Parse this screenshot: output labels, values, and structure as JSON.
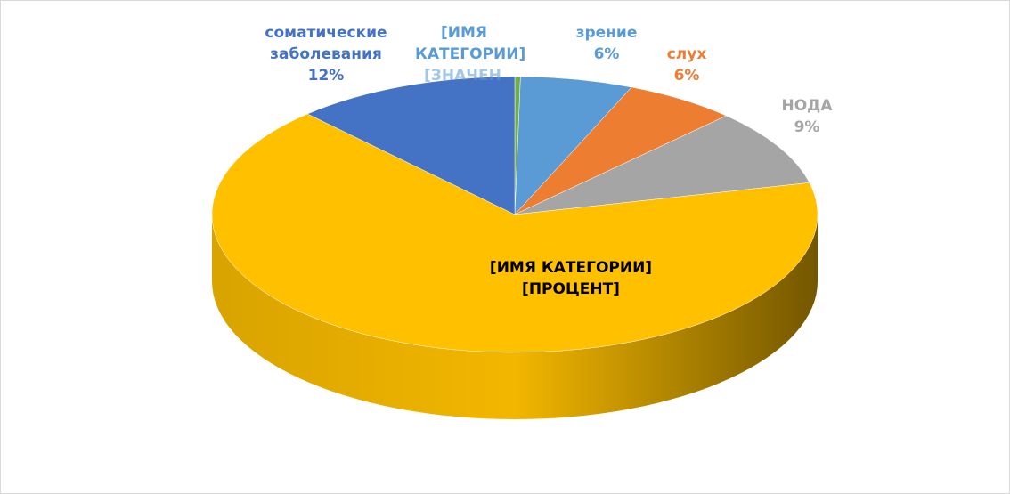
{
  "chart_data": {
    "type": "pie",
    "categories": [
      "[ИМЯ КАТЕГОРИИ]",
      "зрение",
      "слух",
      "НОДА",
      "[ИМЯ КАТЕГОРИИ]",
      "соматические заболевания"
    ],
    "values": [
      0.3,
      6,
      6,
      9,
      66.7,
      12
    ],
    "value_labels": [
      "[ЗНАЧЕН",
      "6%",
      "6%",
      "9%",
      "[ПРОЦЕНТ]",
      "12%"
    ],
    "colors": [
      "#70ad47",
      "#5b9bd5",
      "#ed7d31",
      "#a5a5a5",
      "#ffc000",
      "#4472c4"
    ],
    "label_colors": [
      "#5b9bd5",
      "#5b9bd5",
      "#ed7d31",
      "#a5a5a5",
      "#000000",
      "#4472c4"
    ]
  }
}
